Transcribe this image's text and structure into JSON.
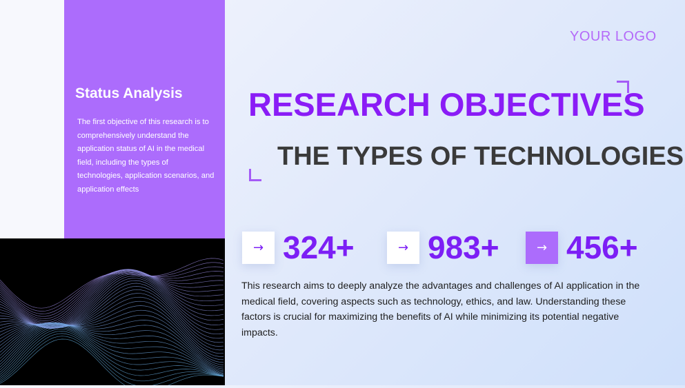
{
  "sidebar": {
    "heading": "Status Analysis",
    "text": "The first objective of this research is to comprehensively understand the application status of AI in the medical field, including the types of technologies, application scenarios, and application effects"
  },
  "logo": "YOUR LOGO",
  "title": "RESEARCH OBJECTIVES",
  "subtitle": "THE TYPES OF TECHNOLOGIES",
  "stats": [
    {
      "value": "324+",
      "icon": "arrow-right-icon"
    },
    {
      "value": "983+",
      "icon": "arrow-right-icon"
    },
    {
      "value": "456+",
      "icon": "arrow-right-icon"
    }
  ],
  "arrow": "→",
  "body": "This research aims to deeply analyze the advantages and challenges of AI application in the medical field, covering aspects such as technology, ethics, and law. Understanding these factors is crucial for maximizing the benefits of AI while minimizing its potential negative impacts.",
  "colors": {
    "accent": "#8a1cf6",
    "panel": "#ac6cfc"
  }
}
